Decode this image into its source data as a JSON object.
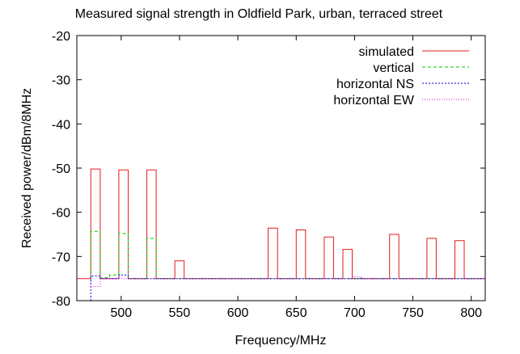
{
  "chart_data": {
    "type": "line",
    "title": "Measured signal strength in Oldfield Park, urban, terraced street",
    "xlabel": "Frequency/MHz",
    "ylabel": "Received power/dBm/8MHz",
    "xlim": [
      462,
      812
    ],
    "ylim": [
      -80,
      -20
    ],
    "xticks": [
      500,
      550,
      600,
      650,
      700,
      750,
      800
    ],
    "yticks": [
      -80,
      -70,
      -60,
      -50,
      -40,
      -30,
      -20
    ],
    "grid": false,
    "legend_position": "top-right",
    "series": [
      {
        "name": "simulated",
        "color": "#e41a1c",
        "dash": "",
        "points": [
          [
            462,
            -75
          ],
          [
            474,
            -75
          ],
          [
            474,
            -50.2
          ],
          [
            482,
            -50.2
          ],
          [
            482,
            -75
          ],
          [
            498,
            -75
          ],
          [
            498,
            -50.4
          ],
          [
            506,
            -50.4
          ],
          [
            506,
            -75
          ],
          [
            522,
            -75
          ],
          [
            522,
            -50.4
          ],
          [
            530,
            -50.4
          ],
          [
            530,
            -75
          ],
          [
            546,
            -75
          ],
          [
            546,
            -71
          ],
          [
            554,
            -71
          ],
          [
            554,
            -75
          ],
          [
            626,
            -75
          ],
          [
            626,
            -63.6
          ],
          [
            634,
            -63.6
          ],
          [
            634,
            -75
          ],
          [
            650,
            -75
          ],
          [
            650,
            -64
          ],
          [
            658,
            -64
          ],
          [
            658,
            -75
          ],
          [
            674,
            -75
          ],
          [
            674,
            -65.6
          ],
          [
            682,
            -65.6
          ],
          [
            682,
            -75
          ],
          [
            690,
            -75
          ],
          [
            690,
            -68.4
          ],
          [
            698,
            -68.4
          ],
          [
            698,
            -75
          ],
          [
            730,
            -75
          ],
          [
            730,
            -65
          ],
          [
            738,
            -65
          ],
          [
            738,
            -75
          ],
          [
            762,
            -75
          ],
          [
            762,
            -65.9
          ],
          [
            770,
            -65.9
          ],
          [
            770,
            -75
          ],
          [
            786,
            -75
          ],
          [
            786,
            -66.4
          ],
          [
            794,
            -66.4
          ],
          [
            794,
            -75
          ],
          [
            812,
            -75
          ]
        ]
      },
      {
        "name": "vertical",
        "color": "#00c800",
        "dash": "4,3",
        "points": [
          [
            474,
            -75
          ],
          [
            474,
            -64.3
          ],
          [
            482,
            -64.3
          ],
          [
            482,
            -74.8
          ],
          [
            490,
            -74.8
          ],
          [
            490,
            -74.2
          ],
          [
            498,
            -74.2
          ],
          [
            498,
            -64.8
          ],
          [
            506,
            -64.8
          ],
          [
            506,
            -75
          ],
          [
            522,
            -75
          ],
          [
            522,
            -65.9
          ],
          [
            530,
            -65.9
          ],
          [
            530,
            -75
          ],
          [
            812,
            -75
          ]
        ]
      },
      {
        "name": "horizontal NS",
        "color": "#0000dd",
        "dash": "2,2",
        "points": [
          [
            474,
            -80
          ],
          [
            474,
            -74.4
          ],
          [
            482,
            -74.4
          ],
          [
            482,
            -75
          ],
          [
            498,
            -75
          ],
          [
            498,
            -74.2
          ],
          [
            506,
            -74.2
          ],
          [
            506,
            -75
          ],
          [
            812,
            -75
          ]
        ]
      },
      {
        "name": "horizontal EW",
        "color": "#dd00dd",
        "dash": "1,2",
        "points": [
          [
            474,
            -75
          ],
          [
            474,
            -76.8
          ],
          [
            482,
            -76.8
          ],
          [
            482,
            -75
          ],
          [
            698,
            -75
          ],
          [
            698,
            -74.6
          ],
          [
            706,
            -74.6
          ],
          [
            706,
            -75
          ],
          [
            812,
            -75
          ]
        ]
      }
    ]
  }
}
